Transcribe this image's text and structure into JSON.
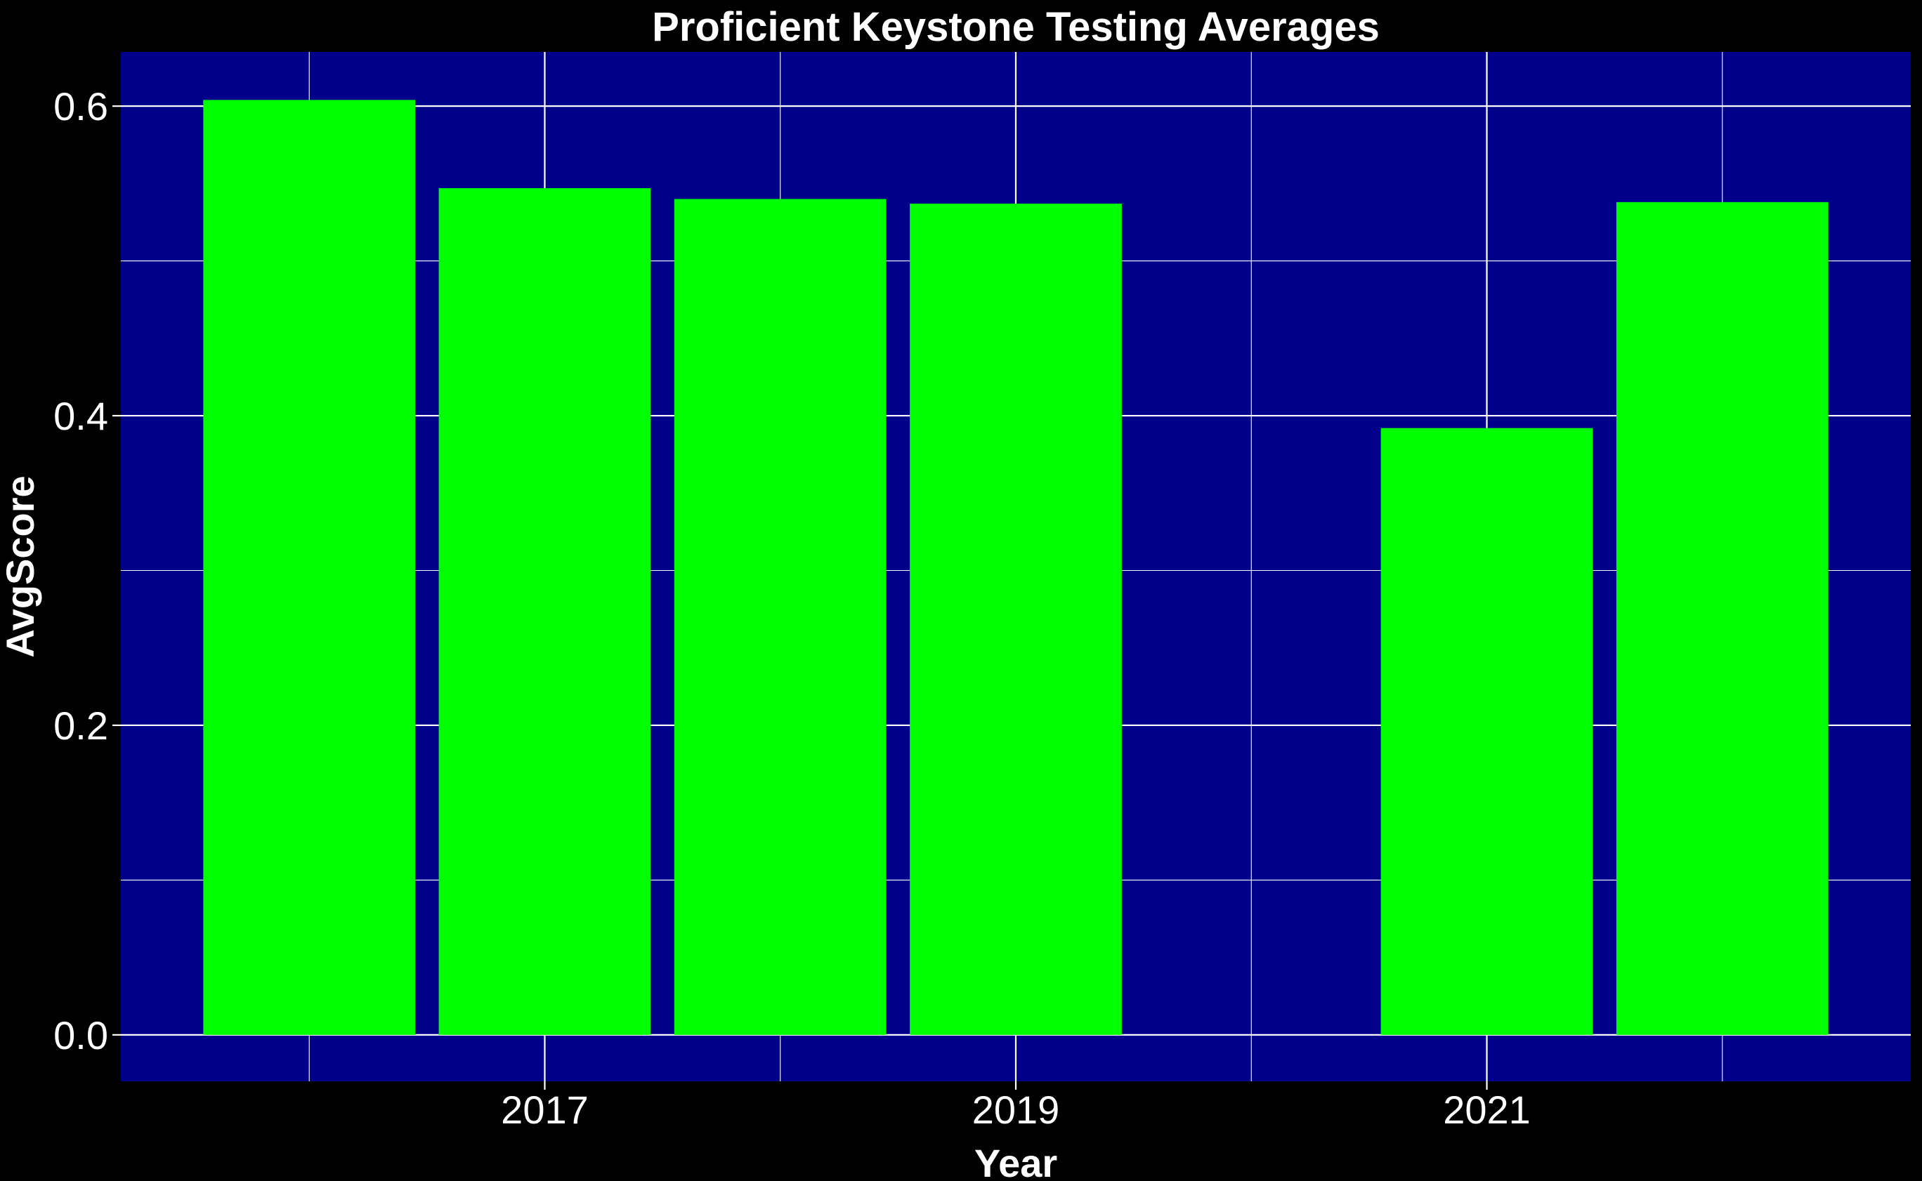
{
  "chart_data": {
    "type": "bar",
    "title": "Proficient Keystone Testing Averages",
    "xlabel": "Year",
    "ylabel": "AvgScore",
    "x": [
      2016,
      2017,
      2018,
      2019,
      2021,
      2022
    ],
    "values": [
      0.604,
      0.547,
      0.54,
      0.537,
      0.392,
      0.538
    ],
    "xlim": [
      2015.2,
      2022.8
    ],
    "ylim": [
      -0.03,
      0.635
    ],
    "x_ticks": [
      2017,
      2019,
      2021
    ],
    "x_tick_labels": [
      "2017",
      "2019",
      "2021"
    ],
    "y_ticks": [
      0.0,
      0.2,
      0.4,
      0.6
    ],
    "y_tick_labels": [
      "0.0",
      "0.2",
      "0.4",
      "0.6"
    ],
    "grid": true,
    "colors": {
      "background": "#000000",
      "panel": "#00008b",
      "bar": "#00ff00",
      "grid": "#ffffff",
      "text": "#ffffff"
    }
  }
}
